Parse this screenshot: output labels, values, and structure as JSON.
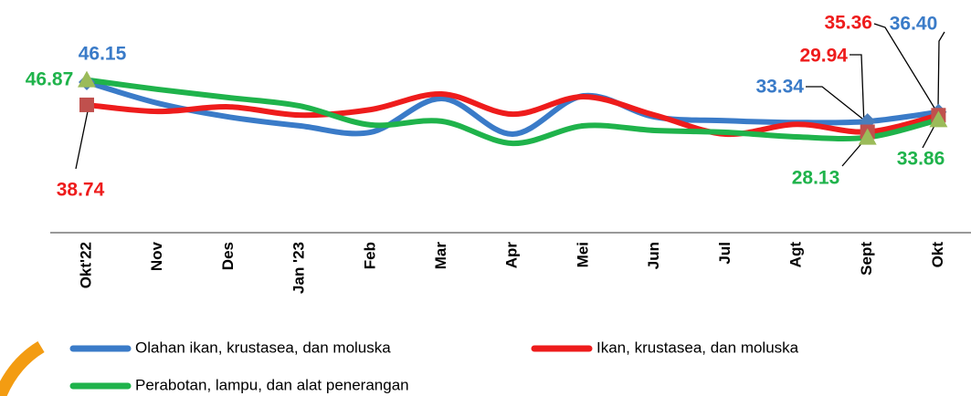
{
  "chart_data": {
    "type": "line",
    "categories": [
      "Okt'22",
      "Nov",
      "Des",
      "Jan '23",
      "Feb",
      "Mar",
      "Apr",
      "Mei",
      "Jun",
      "Jul",
      "Agt",
      "Sept",
      "Okt"
    ],
    "ylim": [
      10,
      60
    ],
    "series": [
      {
        "name": "Olahan ikan, krustasea, dan moluska",
        "color": "#3a7bc8",
        "marker_color": "#4a7ebb",
        "values": [
          46.15,
          39.3,
          34.8,
          31.9,
          29.8,
          40.8,
          29.2,
          41.7,
          34.8,
          33.6,
          33.0,
          33.34,
          36.4
        ],
        "value_labels": [
          "46.15",
          null,
          null,
          null,
          null,
          null,
          null,
          null,
          null,
          null,
          null,
          "33.34",
          "36.40"
        ]
      },
      {
        "name": "Ikan, krustasea, dan moluska",
        "color": "#ee1c1c",
        "marker_color": "#c0504d",
        "values": [
          38.74,
          36.6,
          38.1,
          35.4,
          37.2,
          42.3,
          35.7,
          41.4,
          35.4,
          29.2,
          32.4,
          29.94,
          35.36
        ],
        "value_labels": [
          "38.74",
          null,
          null,
          null,
          null,
          null,
          null,
          null,
          null,
          null,
          null,
          "29.94",
          "35.36"
        ]
      },
      {
        "name": "Perabotan, lampu, dan alat penerangan",
        "color": "#1fb34b",
        "marker_color": "#9bbb59",
        "values": [
          46.87,
          43.8,
          41.1,
          38.4,
          32.2,
          33.4,
          26.2,
          31.9,
          30.4,
          29.8,
          28.3,
          28.13,
          33.86
        ],
        "value_labels": [
          "46.87",
          null,
          null,
          null,
          null,
          null,
          null,
          null,
          null,
          null,
          null,
          "28.13",
          "33.86"
        ]
      }
    ]
  }
}
